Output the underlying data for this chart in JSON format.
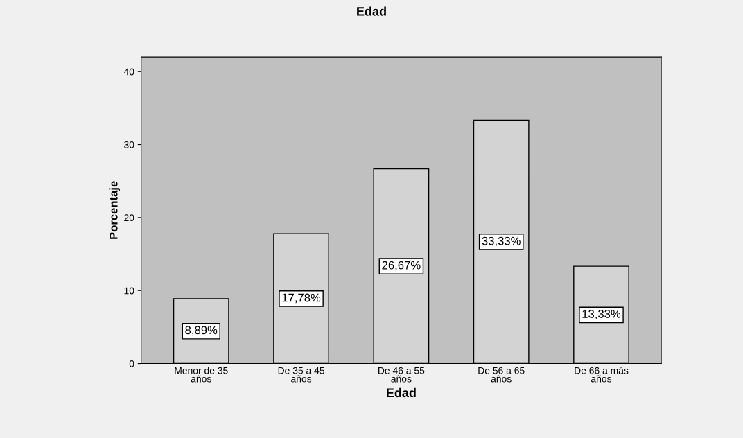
{
  "chart_data": {
    "type": "bar",
    "title": "Edad",
    "xlabel": "Edad",
    "ylabel": "Porcentaje",
    "categories": [
      "Menor de 35\naños",
      "De 35 a 45\naños",
      "De 46 a 55\naños",
      "De 56 a 65\naños",
      "De 66 a más\naños"
    ],
    "values": [
      8.89,
      17.78,
      26.67,
      33.33,
      13.33
    ],
    "value_labels": [
      "8,89%",
      "17,78%",
      "26,67%",
      "33,33%",
      "13,33%"
    ],
    "color": "#d3d3d3",
    "ylim": [
      0,
      42
    ],
    "yticks": [
      0,
      10,
      20,
      30,
      40
    ],
    "grid": false
  }
}
